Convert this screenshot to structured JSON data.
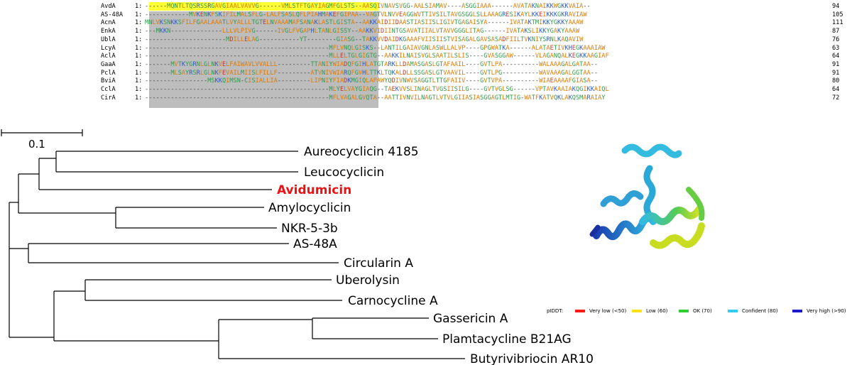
{
  "alignment": {
    "rows": [
      {
        "name": "AvdA",
        "seq": "------MQNTLTQSRSSRGAVGIAALVAVVG------VMLSTFTGAYIAGMFGLSTS--AASQIVNAVSVGG-AALSIAMAV----ASGGIAAA------AVATAKNAIKKWGKKVAIA--",
        "count": "94"
      },
      {
        "name": "AS-48A",
        "seq": "------------MVKENKFSKIFILMALSFLG-LALFSASLQFLPIAHMAKEFGIPAA--VAGTVLNVVEAGGWVTTIVSILTAVGSGGLSLLAAAGRESIKAYLKKEIKKKGKRAVIAW",
        "count": "105"
      },
      {
        "name": "AcnA",
        "seq": "MNLVKSNKKSFILFGAALAAATLVYALLLTGTELNVAAAMAFSANAKLASTLGISTA--AAKKAIDIIDAASTIASIISLIGIVTGAGAISYA------IVATAKTMIKKYGKKYAAAW",
        "count": "111"
      },
      {
        "name": "EnkA",
        "seq": "---MKKN--------------LLLVLPIVG------IVGLFVGAPHLTANLGISSY--AAKKVIDIINTGSAVATIIALVTAVVGGGLITAG------IVATAKSLIKKYGAKYAAAW",
        "count": "87"
      },
      {
        "name": "UblA",
        "seq": "----------------------MDILLELAG-----------YT--------GIASG--TAKKVVDAIDKGAAAFVIISIISTVISAGALGAVSASADFIILTVKNIYSRNLKAQAVIW",
        "count": "76"
      },
      {
        "name": "LcyA",
        "seq": "--------------------------------------------------MFLVNQLGISKS--LANTILGAIAVGNLASWLLALVP----GPGWATKA------ALATAETIVKHEGKAAAIAW",
        "count": "63"
      },
      {
        "name": "AclA",
        "seq": "--------------------------------------------------MLLELTGLGIGTG--AAKKILNAISVGLSAATILSLIS----GVASGGAW------VLAGANQALKEGKKAAGIAF",
        "count": "64"
      },
      {
        "name": "GaaA",
        "seq": "-------MVTKYGRNLGLNKVELFAIWAVLVVALLL---------TTANIYWIADQFGIHLATGTARKLLDAMASGASLGTAFAAIL----GVTLPA----------WALAAAGALGATAA--",
        "count": "91"
      },
      {
        "name": "PclA",
        "seq": "-------MLSAYRSRLGLNKFEVAILMIISLFILLF---------ATVNIVWIARQFGVHLTTKLTQKALDLLSSGASLGTVAAVIL----GVTLPG----------WAVAAAGALGGTAA--",
        "count": "91"
      },
      {
        "name": "BviA",
        "seq": "-----------------MSKKQIMSN-CISIALLIA---------LIPNIYFIADKMGIQLAPAWYQDIVNWVSAGGTLTTGFAIIV----GVTVPA----------WIAEAAAAFGIASA--",
        "count": "80"
      },
      {
        "name": "CclA",
        "seq": "--------------------------------------------------MLYELVAYGIAQG--TAEKVVSLINAGLTVGSIISILG----GVTVGLSG------VPTAVKAAIAKQGIKKAIQL",
        "count": "64"
      },
      {
        "name": "CirA",
        "seq": "--------------------------------------------------MFLVAGALGVQTA--AATTIVNVILNAGTLVTVLGIIASIASGGAGTLMTIG-WATFKATVQKLAKQSMARAIAY",
        "count": "72"
      }
    ]
  },
  "scale": {
    "label": "0.1"
  },
  "tree": {
    "leaves": [
      {
        "label": "Aureocyclicin 4185",
        "highlight": false
      },
      {
        "label": "Leucocyclicin",
        "highlight": false
      },
      {
        "label": "Avidumicin",
        "highlight": true
      },
      {
        "label": "Amylocyclicin",
        "highlight": false
      },
      {
        "label": "NKR-5-3b",
        "highlight": false
      },
      {
        "label": "AS-48A",
        "highlight": false
      },
      {
        "label": "Circularin A",
        "highlight": false
      },
      {
        "label": "Uberolysin",
        "highlight": false
      },
      {
        "label": "Carnocycline A",
        "highlight": false
      },
      {
        "label": "Gassericin A",
        "highlight": false
      },
      {
        "label": "Plamtacycline B21AG",
        "highlight": false
      },
      {
        "label": "Butyrivibriocin AR10",
        "highlight": false
      }
    ],
    "highlight_color": "#ee1111"
  },
  "legend": {
    "title": "pIDDT:",
    "items": [
      {
        "label": "Very low (<50)",
        "color": "#ff1a1a"
      },
      {
        "label": "Low (60)",
        "color": "#ffe11a"
      },
      {
        "label": "OK (70)",
        "color": "#33cc33"
      },
      {
        "label": "Confident (80)",
        "color": "#33ccee"
      },
      {
        "label": "Very high (>90)",
        "color": "#1a1acc"
      }
    ]
  }
}
